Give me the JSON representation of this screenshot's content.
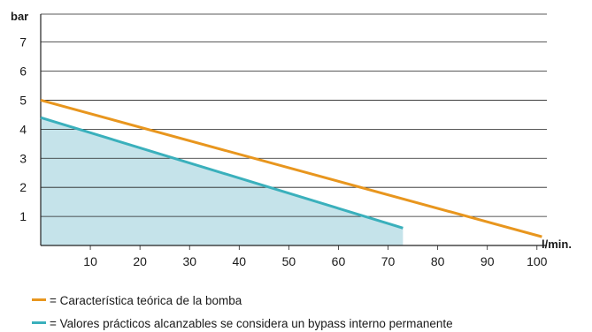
{
  "chart_data": {
    "type": "line",
    "ylabel": "bar",
    "xlabel": "l/min.",
    "xlim": [
      0,
      102
    ],
    "ylim": [
      0,
      8
    ],
    "x_ticks": [
      10,
      20,
      30,
      40,
      50,
      60,
      70,
      80,
      90,
      100
    ],
    "y_ticks": [
      1,
      2,
      3,
      4,
      5,
      6,
      7
    ],
    "grid": "horizontal",
    "series": [
      {
        "name": "Característica teórica de la bomba",
        "color": "#e8961e",
        "x": [
          0,
          101
        ],
        "y": [
          5.0,
          0.3
        ]
      },
      {
        "name": "Valores prácticos alcanzables se considera un bypass interno permanente",
        "color": "#3ab0bc",
        "fill": "#c5e3ea",
        "x": [
          0,
          73
        ],
        "y": [
          4.4,
          0.6
        ]
      }
    ]
  },
  "legend": [
    {
      "text": "= Característica teórica de la bomba",
      "color": "#e8961e"
    },
    {
      "text": "= Valores prácticos alcanzables se considera un bypass interno permanente",
      "color": "#3ab0bc"
    }
  ]
}
